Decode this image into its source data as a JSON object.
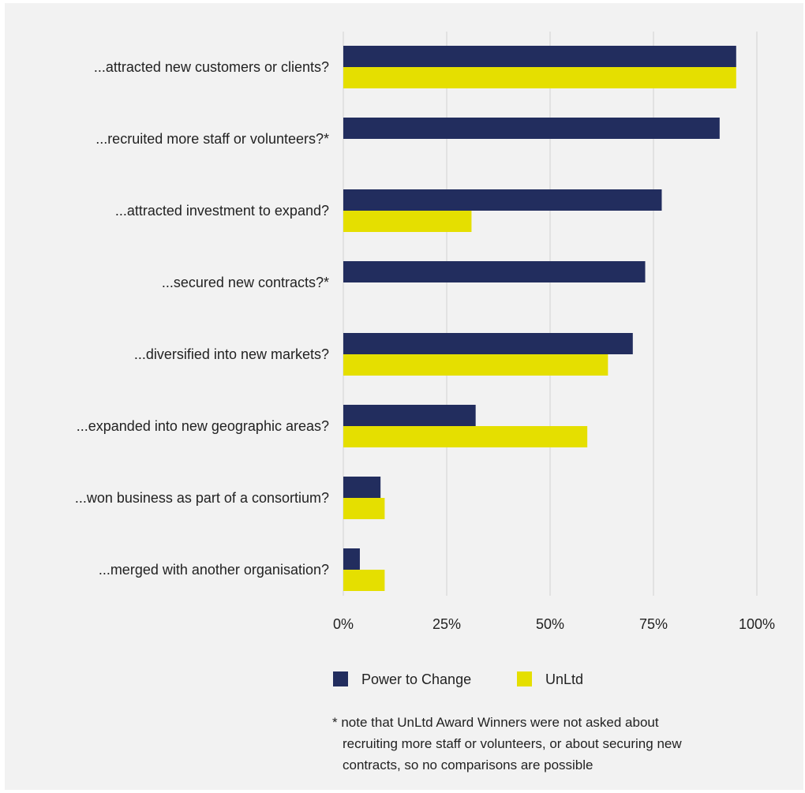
{
  "chart_data": {
    "type": "bar",
    "orientation": "horizontal",
    "categories": [
      "...attracted new customers or clients?",
      "...recruited more staff or volunteers?*",
      "...attracted investment to expand?",
      "...secured new contracts?*",
      "...diversified into new markets?",
      "...expanded into new geographic areas?",
      "...won business as part of a consortium?",
      "...merged with another organisation?"
    ],
    "series": [
      {
        "name": "Power to Change",
        "color": "#222d5e",
        "values": [
          95,
          91,
          77,
          73,
          70,
          32,
          9,
          4
        ]
      },
      {
        "name": "UnLtd",
        "color": "#e5df00",
        "values": [
          95,
          null,
          31,
          null,
          64,
          59,
          10,
          10
        ]
      }
    ],
    "xlim": [
      0,
      100
    ],
    "xticks": [
      0,
      25,
      50,
      75,
      100
    ],
    "xtick_labels": [
      "0%",
      "25%",
      "50%",
      "75%",
      "100%"
    ],
    "grid": "vertical",
    "legend": "bottom",
    "title": "",
    "xlabel": "",
    "ylabel": ""
  },
  "note": {
    "lines": [
      "* note that UnLtd Award Winners were not asked about",
      "recruiting more staff or volunteers, or about securing new",
      "contracts, so no comparisons are possible"
    ]
  }
}
